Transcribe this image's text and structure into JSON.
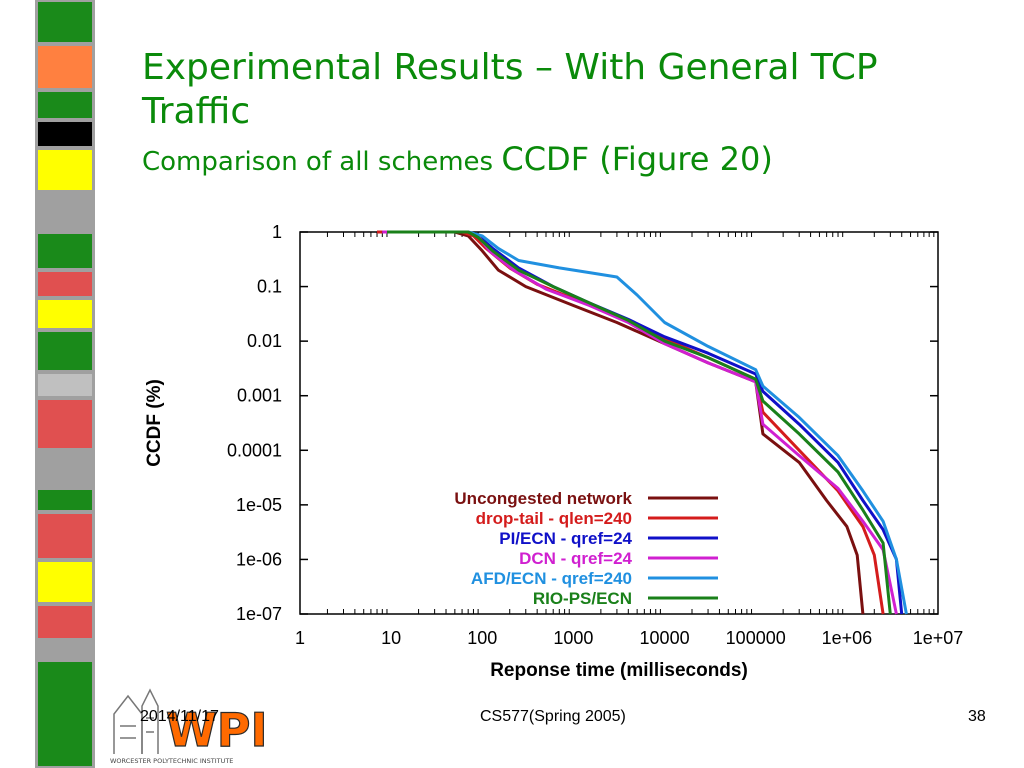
{
  "slide": {
    "title": "Experimental Results – With  General TCP Traffic",
    "subtitle_small": "Comparison of all schemes",
    "subtitle_large": "CCDF (Figure 20)",
    "footer_date": "2014/11/17",
    "footer_course": "CS577(Spring 2005)",
    "page_number": "38",
    "logo_text": "WPI",
    "logo_caption": "WORCESTER POLYTECHNIC INSTITUTE"
  },
  "colors": {
    "title": "#0a8a0a",
    "stripe": [
      "#a0a0a0",
      "#1a8a1a",
      "#ff8040",
      "#1a8a1a",
      "#000000",
      "#ffff00",
      "#1a8a1a",
      "#e05050",
      "#ffff00",
      "#1a8a1a",
      "#e05050",
      "#c0c0c0",
      "#1a8a1a",
      "#e05050",
      "#ffff00",
      "#e05050",
      "#1a8a1a"
    ]
  },
  "chart_data": {
    "type": "line",
    "title": "",
    "xlabel": "Reponse time (milliseconds)",
    "ylabel": "CCDF (%)",
    "x_scale": "log",
    "y_scale": "log",
    "xlim": [
      1,
      10000000
    ],
    "ylim": [
      1e-07,
      1
    ],
    "x_ticks": [
      1,
      10,
      100,
      1000,
      10000,
      100000,
      1000000,
      10000000
    ],
    "x_tick_labels": [
      "1",
      "10",
      "100",
      "1000",
      "10000",
      "100000",
      "1e+06",
      "1e+07"
    ],
    "y_ticks": [
      1,
      0.1,
      0.01,
      0.001,
      0.0001,
      1e-05,
      1e-06,
      1e-07
    ],
    "y_tick_labels": [
      "1",
      "0.1",
      "0.01",
      "0.001",
      "0.0001",
      "1e-05",
      "1e-06",
      "1e-07"
    ],
    "grid": true,
    "legend_position": "bottom-right",
    "series": [
      {
        "name": "Uncongested network",
        "color": "#7a1010",
        "points": [
          [
            7,
            1
          ],
          [
            50,
            1
          ],
          [
            70,
            0.85
          ],
          [
            100,
            0.45
          ],
          [
            150,
            0.2
          ],
          [
            300,
            0.1
          ],
          [
            1000,
            0.045
          ],
          [
            3000,
            0.022
          ],
          [
            10000,
            0.009
          ],
          [
            30000,
            0.004
          ],
          [
            100000,
            0.0018
          ],
          [
            120000,
            0.0002
          ],
          [
            300000,
            6e-05
          ],
          [
            600000,
            1.2e-05
          ],
          [
            1000000,
            4e-06
          ],
          [
            1300000,
            1.2e-06
          ],
          [
            1500000,
            1e-07
          ]
        ]
      },
      {
        "name": "drop-tail - qlen=240",
        "color": "#d41c1c",
        "points": [
          [
            7,
            1
          ],
          [
            60,
            1
          ],
          [
            80,
            0.85
          ],
          [
            110,
            0.5
          ],
          [
            200,
            0.22
          ],
          [
            400,
            0.11
          ],
          [
            1000,
            0.06
          ],
          [
            2000,
            0.04
          ],
          [
            3000,
            0.028
          ],
          [
            10000,
            0.011
          ],
          [
            30000,
            0.005
          ],
          [
            100000,
            0.002
          ],
          [
            120000,
            0.0005
          ],
          [
            300000,
            0.0001
          ],
          [
            800000,
            1.8e-05
          ],
          [
            1500000,
            4e-06
          ],
          [
            2000000,
            1.2e-06
          ],
          [
            2500000,
            1e-07
          ]
        ]
      },
      {
        "name": "PI/ECN - qref=24",
        "color": "#1010c8",
        "points": [
          [
            8,
            1
          ],
          [
            70,
            1
          ],
          [
            90,
            0.85
          ],
          [
            130,
            0.5
          ],
          [
            250,
            0.22
          ],
          [
            600,
            0.1
          ],
          [
            1500,
            0.05
          ],
          [
            4000,
            0.025
          ],
          [
            10000,
            0.012
          ],
          [
            30000,
            0.006
          ],
          [
            100000,
            0.0025
          ],
          [
            120000,
            0.0012
          ],
          [
            300000,
            0.0003
          ],
          [
            800000,
            6e-05
          ],
          [
            1500000,
            1.2e-05
          ],
          [
            2500000,
            3.5e-06
          ],
          [
            3500000,
            1e-06
          ],
          [
            4000000,
            1e-07
          ]
        ]
      },
      {
        "name": "DCN - qref=24",
        "color": "#d020d0",
        "points": [
          [
            8,
            1
          ],
          [
            70,
            1
          ],
          [
            90,
            0.85
          ],
          [
            120,
            0.45
          ],
          [
            220,
            0.2
          ],
          [
            500,
            0.09
          ],
          [
            1500,
            0.045
          ],
          [
            4000,
            0.022
          ],
          [
            10000,
            0.009
          ],
          [
            30000,
            0.004
          ],
          [
            100000,
            0.0018
          ],
          [
            120000,
            0.0003
          ],
          [
            300000,
            8e-05
          ],
          [
            800000,
            2e-05
          ],
          [
            1500000,
            5e-06
          ],
          [
            2500000,
            1.5e-06
          ],
          [
            3500000,
            1e-07
          ]
        ]
      },
      {
        "name": "AFD/ECN - qref=240",
        "color": "#2090e0",
        "points": [
          [
            10,
            1
          ],
          [
            70,
            1
          ],
          [
            100,
            0.85
          ],
          [
            150,
            0.5
          ],
          [
            250,
            0.3
          ],
          [
            700,
            0.22
          ],
          [
            1500,
            0.18
          ],
          [
            3000,
            0.15
          ],
          [
            5000,
            0.07
          ],
          [
            10000,
            0.022
          ],
          [
            30000,
            0.008
          ],
          [
            100000,
            0.003
          ],
          [
            120000,
            0.0015
          ],
          [
            300000,
            0.0004
          ],
          [
            800000,
            8e-05
          ],
          [
            1500000,
            1.8e-05
          ],
          [
            2500000,
            5e-06
          ],
          [
            3500000,
            1e-06
          ],
          [
            4500000,
            1e-07
          ]
        ]
      },
      {
        "name": "RIO-PS/ECN",
        "color": "#1a801a",
        "points": [
          [
            9,
            1
          ],
          [
            70,
            1
          ],
          [
            90,
            0.8
          ],
          [
            130,
            0.45
          ],
          [
            250,
            0.2
          ],
          [
            600,
            0.1
          ],
          [
            1500,
            0.05
          ],
          [
            4000,
            0.024
          ],
          [
            10000,
            0.01
          ],
          [
            30000,
            0.005
          ],
          [
            100000,
            0.002
          ],
          [
            120000,
            0.0008
          ],
          [
            300000,
            0.0002
          ],
          [
            800000,
            4e-05
          ],
          [
            1500000,
            8e-06
          ],
          [
            2500000,
            2e-06
          ],
          [
            3000000,
            1e-07
          ]
        ]
      }
    ]
  }
}
